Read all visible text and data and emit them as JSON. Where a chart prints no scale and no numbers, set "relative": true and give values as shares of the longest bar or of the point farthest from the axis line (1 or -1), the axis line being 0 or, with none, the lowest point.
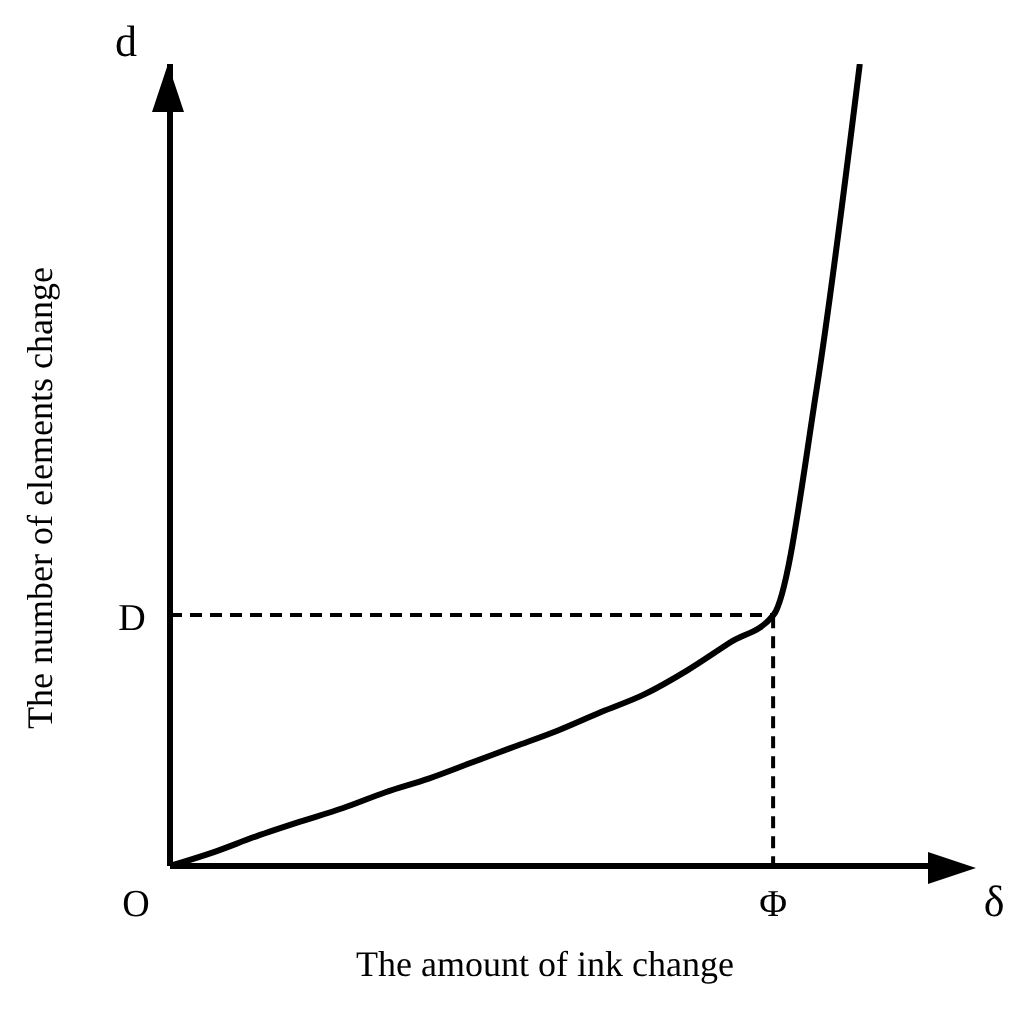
{
  "chart_data": {
    "type": "line",
    "relative": true,
    "xlabel": "The amount of ink change",
    "ylabel": "The number of elements change",
    "categories": [
      null,
      null,
      null,
      null,
      null,
      null,
      null,
      null,
      null,
      null,
      null,
      null,
      null,
      null,
      null,
      null,
      null,
      null,
      null
    ],
    "series": [
      {
        "color": "#000000",
        "values": [
          0,
          0.017,
          0.037,
          0.055,
          0.072,
          0.092,
          0.109,
          0.129,
          0.149,
          0.169,
          0.192,
          0.214,
          0.244,
          0.279,
          0.313,
          0.595,
          1,
          null,
          null
        ]
      },
      {
        "color": "#000000",
        "line_style": "dashed",
        "values": [
          0.313,
          0.313,
          0.313,
          0.313,
          0.313,
          0.313,
          0.313,
          0.313,
          0.313,
          0.313,
          0.313,
          0.313,
          0.313,
          0.313,
          0.313,
          null,
          null,
          null,
          null
        ]
      }
    ],
    "annotations": [
      "O",
      "D",
      "Φ",
      "d",
      "δ"
    ],
    "marker": "none"
  }
}
